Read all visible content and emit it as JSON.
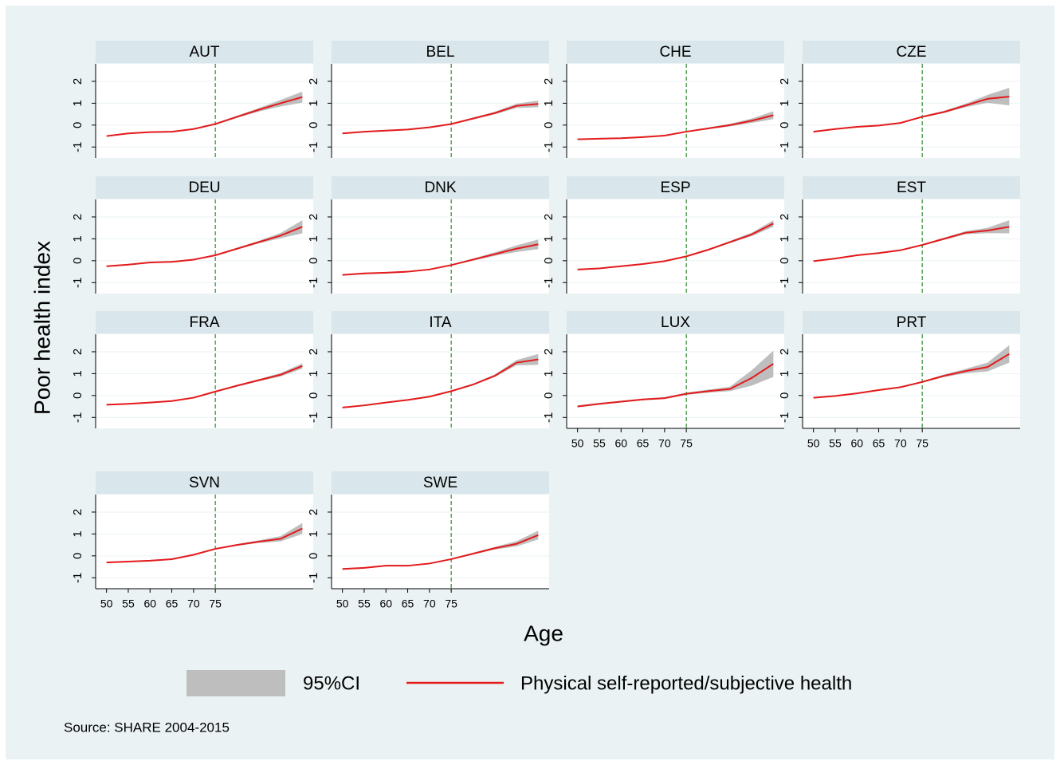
{
  "figure": {
    "ylabel": "Poor health index",
    "xlabel": "Age",
    "source": "Source: SHARE 2004-2015",
    "xlim": [
      47.5,
      97.5
    ],
    "xticks": [
      50,
      55,
      60,
      65,
      70,
      75
    ],
    "ylim": [
      -1.5,
      2.8
    ],
    "yticks": [
      -1,
      0,
      1,
      2
    ],
    "xline": 75,
    "xline_color": "#2e8b2e",
    "legend": [
      {
        "name": "95%CI",
        "color": "#bebebe"
      },
      {
        "name": "Physical self-reported/subjective health",
        "color": "#e41a1c"
      }
    ]
  },
  "chart_data": [
    {
      "type": "line",
      "title": "AUT",
      "x": [
        50,
        55,
        60,
        65,
        70,
        75,
        80,
        85,
        90,
        95
      ],
      "values": [
        -0.5,
        -0.38,
        -0.32,
        -0.3,
        -0.18,
        0.05,
        0.38,
        0.7,
        1.0,
        1.28
      ],
      "ci": [
        0.04,
        0.03,
        0.03,
        0.03,
        0.03,
        0.04,
        0.05,
        0.08,
        0.15,
        0.25
      ]
    },
    {
      "type": "line",
      "title": "BEL",
      "x": [
        50,
        55,
        60,
        65,
        70,
        75,
        80,
        85,
        90,
        95
      ],
      "values": [
        -0.38,
        -0.3,
        -0.25,
        -0.2,
        -0.1,
        0.05,
        0.3,
        0.55,
        0.88,
        0.97
      ],
      "ci": [
        0.03,
        0.03,
        0.03,
        0.03,
        0.03,
        0.03,
        0.04,
        0.06,
        0.1,
        0.15
      ]
    },
    {
      "type": "line",
      "title": "CHE",
      "x": [
        50,
        55,
        60,
        65,
        70,
        75,
        80,
        85,
        90,
        95
      ],
      "values": [
        -0.65,
        -0.62,
        -0.6,
        -0.55,
        -0.48,
        -0.3,
        -0.15,
        0.0,
        0.2,
        0.45
      ],
      "ci": [
        0.03,
        0.03,
        0.03,
        0.03,
        0.03,
        0.03,
        0.04,
        0.06,
        0.1,
        0.18
      ]
    },
    {
      "type": "line",
      "title": "CZE",
      "x": [
        50,
        55,
        60,
        65,
        70,
        75,
        80,
        85,
        90,
        95
      ],
      "values": [
        -0.3,
        -0.18,
        -0.08,
        -0.02,
        0.1,
        0.38,
        0.6,
        0.9,
        1.2,
        1.3
      ],
      "ci": [
        0.04,
        0.03,
        0.03,
        0.03,
        0.03,
        0.04,
        0.05,
        0.08,
        0.18,
        0.4
      ]
    },
    {
      "type": "line",
      "title": "DEU",
      "x": [
        50,
        55,
        60,
        65,
        70,
        75,
        80,
        85,
        90,
        95
      ],
      "values": [
        -0.25,
        -0.18,
        -0.08,
        -0.05,
        0.05,
        0.25,
        0.55,
        0.85,
        1.15,
        1.55
      ],
      "ci": [
        0.03,
        0.03,
        0.03,
        0.03,
        0.03,
        0.03,
        0.04,
        0.06,
        0.12,
        0.3
      ]
    },
    {
      "type": "line",
      "title": "DNK",
      "x": [
        50,
        55,
        60,
        65,
        70,
        75,
        80,
        85,
        90,
        95
      ],
      "values": [
        -0.65,
        -0.58,
        -0.55,
        -0.5,
        -0.4,
        -0.2,
        0.05,
        0.3,
        0.55,
        0.75
      ],
      "ci": [
        0.03,
        0.03,
        0.03,
        0.03,
        0.03,
        0.03,
        0.05,
        0.08,
        0.15,
        0.22
      ]
    },
    {
      "type": "line",
      "title": "ESP",
      "x": [
        50,
        55,
        60,
        65,
        70,
        75,
        80,
        85,
        90,
        95
      ],
      "values": [
        -0.4,
        -0.35,
        -0.25,
        -0.15,
        -0.02,
        0.2,
        0.5,
        0.85,
        1.2,
        1.7
      ],
      "ci": [
        0.03,
        0.03,
        0.03,
        0.03,
        0.03,
        0.03,
        0.04,
        0.05,
        0.08,
        0.15
      ]
    },
    {
      "type": "line",
      "title": "EST",
      "x": [
        50,
        55,
        60,
        65,
        70,
        75,
        80,
        85,
        90,
        95
      ],
      "values": [
        -0.02,
        0.1,
        0.25,
        0.35,
        0.48,
        0.72,
        1.0,
        1.28,
        1.38,
        1.55
      ],
      "ci": [
        0.03,
        0.03,
        0.03,
        0.03,
        0.03,
        0.04,
        0.05,
        0.07,
        0.12,
        0.3
      ]
    },
    {
      "type": "line",
      "title": "FRA",
      "x": [
        50,
        55,
        60,
        65,
        70,
        75,
        80,
        85,
        90,
        95
      ],
      "values": [
        -0.42,
        -0.38,
        -0.32,
        -0.25,
        -0.1,
        0.18,
        0.45,
        0.7,
        0.95,
        1.35
      ],
      "ci": [
        0.03,
        0.03,
        0.03,
        0.03,
        0.03,
        0.03,
        0.04,
        0.05,
        0.08,
        0.12
      ]
    },
    {
      "type": "line",
      "title": "ITA",
      "x": [
        50,
        55,
        60,
        65,
        70,
        75,
        80,
        85,
        90,
        95
      ],
      "values": [
        -0.55,
        -0.45,
        -0.32,
        -0.2,
        -0.05,
        0.2,
        0.5,
        0.9,
        1.5,
        1.65
      ],
      "ci": [
        0.03,
        0.03,
        0.03,
        0.03,
        0.03,
        0.03,
        0.04,
        0.06,
        0.12,
        0.25
      ]
    },
    {
      "type": "line",
      "title": "LUX",
      "x": [
        50,
        55,
        60,
        65,
        70,
        75,
        80,
        85,
        90,
        95
      ],
      "values": [
        -0.5,
        -0.38,
        -0.28,
        -0.18,
        -0.12,
        0.08,
        0.2,
        0.3,
        0.8,
        1.45
      ],
      "ci": [
        0.05,
        0.04,
        0.04,
        0.04,
        0.04,
        0.05,
        0.07,
        0.1,
        0.35,
        0.6
      ]
    },
    {
      "type": "line",
      "title": "PRT",
      "x": [
        50,
        55,
        60,
        65,
        70,
        75,
        80,
        85,
        90,
        95
      ],
      "values": [
        -0.1,
        -0.02,
        0.1,
        0.25,
        0.38,
        0.62,
        0.9,
        1.12,
        1.3,
        1.9
      ],
      "ci": [
        0.03,
        0.03,
        0.03,
        0.03,
        0.03,
        0.04,
        0.06,
        0.1,
        0.2,
        0.4
      ]
    },
    {
      "type": "line",
      "title": "SVN",
      "x": [
        50,
        55,
        60,
        65,
        70,
        75,
        80,
        85,
        90,
        95
      ],
      "values": [
        -0.3,
        -0.26,
        -0.22,
        -0.15,
        0.05,
        0.32,
        0.5,
        0.65,
        0.78,
        1.25
      ],
      "ci": [
        0.03,
        0.03,
        0.03,
        0.03,
        0.03,
        0.03,
        0.04,
        0.06,
        0.12,
        0.25
      ]
    },
    {
      "type": "line",
      "title": "SWE",
      "x": [
        50,
        55,
        60,
        65,
        70,
        75,
        80,
        85,
        90,
        95
      ],
      "values": [
        -0.6,
        -0.55,
        -0.45,
        -0.45,
        -0.35,
        -0.15,
        0.1,
        0.35,
        0.55,
        0.95
      ],
      "ci": [
        0.03,
        0.03,
        0.03,
        0.03,
        0.03,
        0.03,
        0.04,
        0.06,
        0.12,
        0.2
      ]
    }
  ]
}
